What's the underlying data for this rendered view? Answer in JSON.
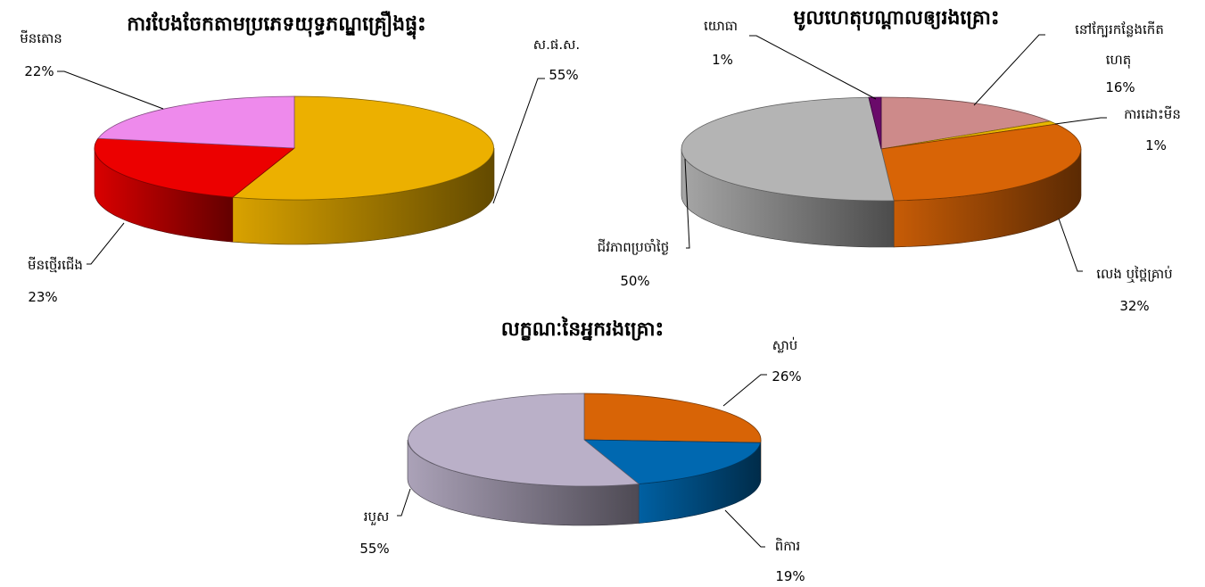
{
  "chart_data": [
    {
      "type": "pie",
      "title": "ការបែងចែកតាមប្រភេទយុទ្ធភណ្ឌគ្រឿងផ្ទុះ",
      "three_d": true,
      "slices": [
        {
          "label": "ស.ផ.ស.",
          "value": 55,
          "display": "55%",
          "color": "#ecb000"
        },
        {
          "label": "មីនថ្មើរជើង",
          "value": 23,
          "display": "23%",
          "color": "#ec0000"
        },
        {
          "label": "មីនតោន",
          "value": 22,
          "display": "22%",
          "color": "#ee8aec"
        }
      ]
    },
    {
      "type": "pie",
      "title": "មូលហេតុបណ្តាលឲ្យរងគ្រោះ",
      "three_d": true,
      "slices": [
        {
          "label": "នៅក្បែរកន្លែងកើតហេតុ",
          "label_lines": [
            "នៅក្បែរកន្លែងកើត",
            "ហេតុ"
          ],
          "value": 16,
          "display": "16%",
          "color": "#cd8a8a"
        },
        {
          "label": "ការដោះមីន",
          "value": 1,
          "display": "1%",
          "color": "#e8b800"
        },
        {
          "label": "លេង ឬថ្ពៃគ្រាប់",
          "value": 32,
          "display": "32%",
          "color": "#d86406"
        },
        {
          "label": "ជីវភាពប្រចាំថ្ងៃ",
          "value": 50,
          "display": "50%",
          "color": "#b4b4b4"
        },
        {
          "label": "យោធា",
          "value": 1,
          "display": "1%",
          "color": "#6a0a6a"
        }
      ]
    },
    {
      "type": "pie",
      "title": "លក្ខណៈនៃអ្នករងគ្រោះ",
      "three_d": true,
      "slices": [
        {
          "label": "ស្លាប់",
          "value": 26,
          "display": "26%",
          "color": "#d86406"
        },
        {
          "label": "ពិការ",
          "value": 19,
          "display": "19%",
          "color": "#0068b0"
        },
        {
          "label": "របួស",
          "value": 55,
          "display": "55%",
          "color": "#bab0c8"
        }
      ]
    }
  ]
}
